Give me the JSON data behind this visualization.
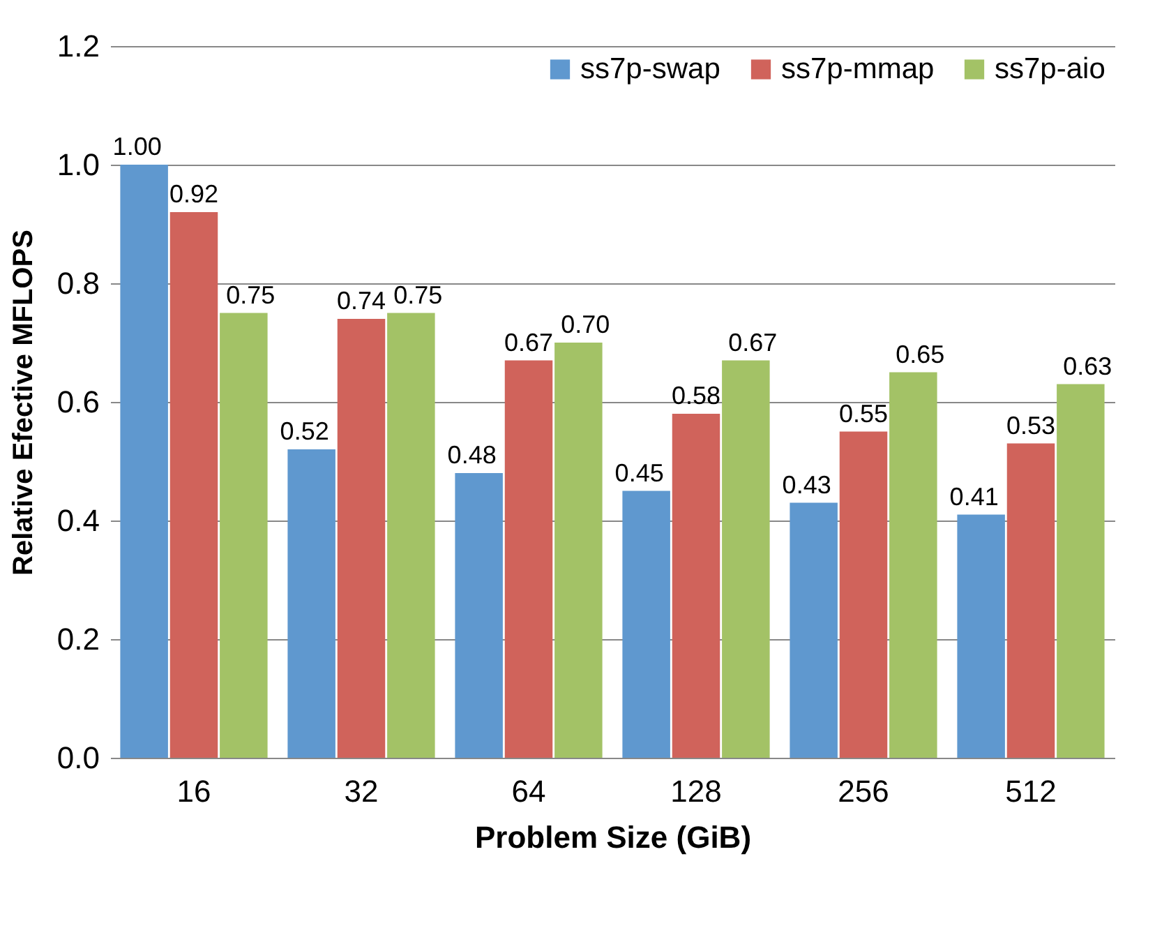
{
  "chart_data": {
    "type": "bar",
    "xlabel": "Problem Size (GiB)",
    "ylabel": "Relative Efective MFLOPS",
    "categories": [
      "16",
      "32",
      "64",
      "128",
      "256",
      "512"
    ],
    "series": [
      {
        "name": "ss7p-swap",
        "color": "#5f98cf",
        "values": [
          1.0,
          0.52,
          0.48,
          0.45,
          0.43,
          0.41
        ],
        "value_labels": [
          "1.00",
          "0.52",
          "0.48",
          "0.45",
          "0.43",
          "0.41"
        ]
      },
      {
        "name": "ss7p-mmap",
        "color": "#d0635b",
        "values": [
          0.92,
          0.74,
          0.67,
          0.58,
          0.55,
          0.53
        ],
        "value_labels": [
          "0.92",
          "0.74",
          "0.67",
          "0.58",
          "0.55",
          "0.53"
        ]
      },
      {
        "name": "ss7p-aio",
        "color": "#a3c266",
        "values": [
          0.75,
          0.75,
          0.7,
          0.67,
          0.65,
          0.63
        ],
        "value_labels": [
          "0.75",
          "0.75",
          "0.70",
          "0.67",
          "0.65",
          "0.63"
        ]
      }
    ],
    "ylim": [
      0,
      1.2
    ],
    "yticks": [
      {
        "value": 0,
        "label": "0.0"
      },
      {
        "value": 0.2,
        "label": "0.2"
      },
      {
        "value": 0.4,
        "label": "0.4"
      },
      {
        "value": 0.6,
        "label": "0.6"
      },
      {
        "value": 0.8,
        "label": "0.8"
      },
      {
        "value": 1,
        "label": "1.0"
      },
      {
        "value": 1.2,
        "label": "1.2"
      }
    ],
    "grid": "y",
    "legend": "top right"
  }
}
